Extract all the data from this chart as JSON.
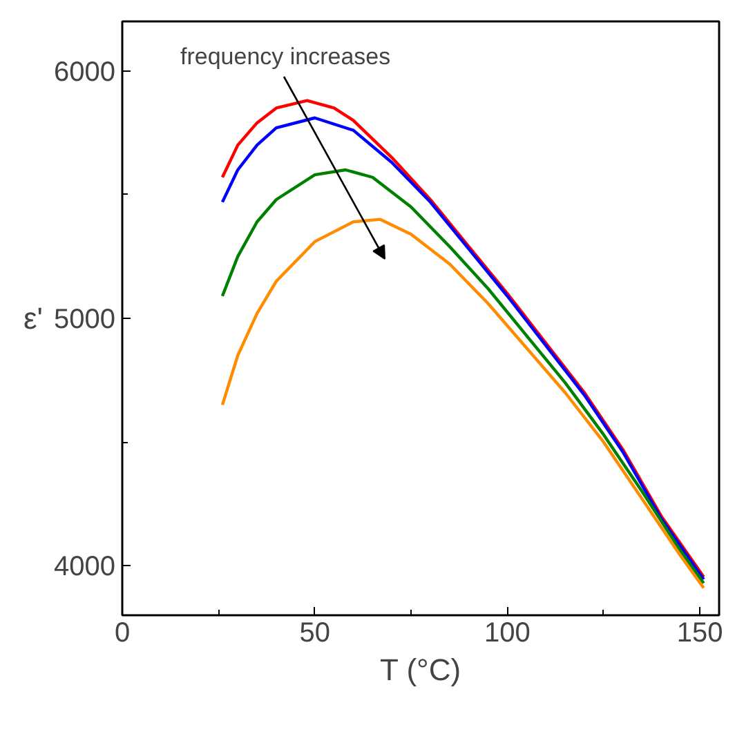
{
  "chart_data": {
    "type": "line",
    "xlabel": "T (°C)",
    "ylabel": "ε'",
    "annotations": [
      "frequency increases"
    ],
    "xlim": [
      0,
      155
    ],
    "ylim": [
      3800,
      6200
    ],
    "xticks": [
      0,
      {
        "value": 25,
        "label": null
      },
      50,
      {
        "value": 75,
        "label": null
      },
      100,
      {
        "value": 125,
        "label": null
      },
      150
    ],
    "yticks": [
      4000,
      {
        "value": 4500,
        "label": null
      },
      5000,
      {
        "value": 5500,
        "label": null
      },
      6000
    ],
    "grid": false,
    "marker": "none",
    "line_style": "solid",
    "series": [
      {
        "color": "#ff0000",
        "x": [
          26,
          30,
          35,
          40,
          48,
          55,
          60,
          70,
          80,
          90,
          100,
          110,
          120,
          130,
          140,
          151
        ],
        "values": [
          5570,
          5700,
          5790,
          5850,
          5880,
          5850,
          5800,
          5650,
          5480,
          5290,
          5100,
          4900,
          4700,
          4470,
          4200,
          3955
        ]
      },
      {
        "color": "#0000ff",
        "x": [
          26,
          30,
          35,
          40,
          50,
          60,
          70,
          80,
          90,
          100,
          110,
          120,
          130,
          140,
          151
        ],
        "values": [
          5470,
          5600,
          5700,
          5770,
          5810,
          5760,
          5630,
          5470,
          5280,
          5090,
          4890,
          4690,
          4460,
          4190,
          3945
        ]
      },
      {
        "color": "#008000",
        "x": [
          26,
          30,
          35,
          40,
          50,
          58,
          65,
          75,
          85,
          95,
          105,
          115,
          125,
          135,
          145,
          151
        ],
        "values": [
          5090,
          5250,
          5390,
          5480,
          5580,
          5600,
          5570,
          5450,
          5290,
          5120,
          4930,
          4740,
          4530,
          4300,
          4060,
          3930
        ]
      },
      {
        "color": "#ff8c00",
        "x": [
          26,
          30,
          35,
          40,
          50,
          60,
          67,
          75,
          85,
          95,
          105,
          115,
          125,
          135,
          145,
          151
        ],
        "values": [
          4650,
          4850,
          5020,
          5150,
          5310,
          5390,
          5400,
          5340,
          5220,
          5060,
          4880,
          4700,
          4500,
          4270,
          4040,
          3910
        ]
      }
    ]
  }
}
